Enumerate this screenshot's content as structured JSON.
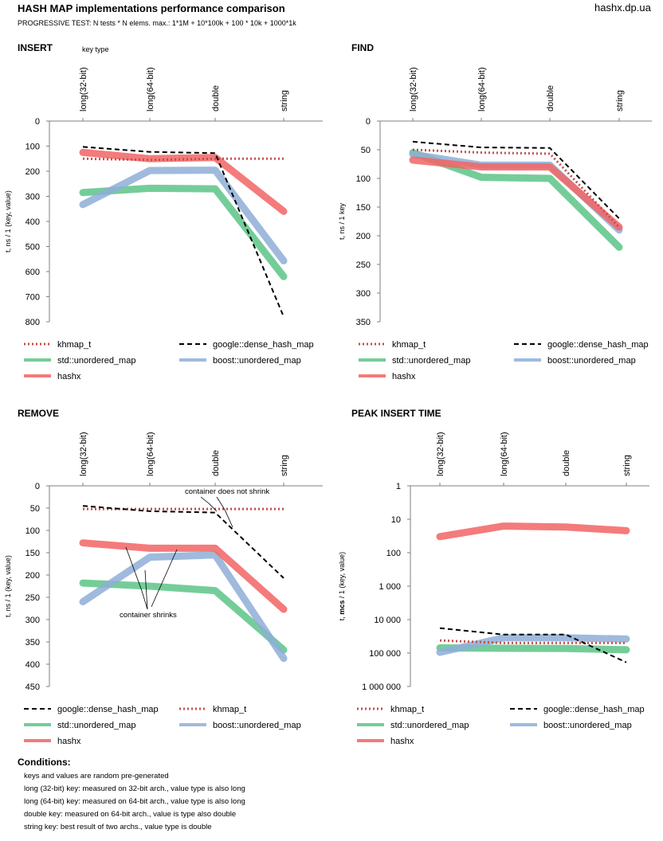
{
  "header": {
    "title": "HASH MAP implementations performance comparison",
    "subtitle": "PROGRESSIVE TEST: N tests * N elems. max.: 1*1M + 10*100k + 100 * 10k + 1000*1k",
    "site": "hashx.dp.ua"
  },
  "annotations": {
    "key_type": "key type",
    "no_shrink": "container does not shrink",
    "shrinks": "container shrinks"
  },
  "styles": {
    "khmap_t": {
      "color": "#c0504d",
      "width": 3,
      "dash": "2,3",
      "cap": "butt"
    },
    "google::dense_hash_map": {
      "color": "#000000",
      "width": 2,
      "dash": "6,4",
      "cap": "butt"
    },
    "std::unordered_map": {
      "color": "#5cc487",
      "width": 9,
      "dash": "",
      "cap": "round"
    },
    "boost::unordered_map": {
      "color": "#8eaed6",
      "width": 9,
      "dash": "",
      "cap": "round"
    },
    "hashx": {
      "color": "#f26464",
      "width": 9,
      "dash": "",
      "cap": "round"
    }
  },
  "chart_data": [
    {
      "type": "line",
      "title": "INSERT",
      "ylabel": "t, ns / 1 (key, value)",
      "categories": [
        "long(32-bit)",
        "long(64-bit)",
        "double",
        "string"
      ],
      "y_inverted": true,
      "ylim": [
        0,
        800
      ],
      "yticks": [
        0,
        100,
        200,
        300,
        400,
        500,
        600,
        700,
        800
      ],
      "ytick_labels": [
        "0",
        "100",
        "200",
        "300",
        "400",
        "500",
        "600",
        "700",
        "800"
      ],
      "legend": [
        "khmap_t",
        "google::dense_hash_map",
        "std::unordered_map",
        "boost::unordered_map",
        "hashx"
      ],
      "series": [
        {
          "name": "std::unordered_map",
          "values": [
            285,
            268,
            270,
            620
          ]
        },
        {
          "name": "boost::unordered_map",
          "values": [
            333,
            197,
            196,
            557
          ]
        },
        {
          "name": "hashx",
          "values": [
            125,
            150,
            145,
            360
          ]
        },
        {
          "name": "khmap_t",
          "values": [
            150,
            155,
            150,
            150
          ]
        },
        {
          "name": "google::dense_hash_map",
          "values": [
            103,
            123,
            128,
            780
          ]
        }
      ]
    },
    {
      "type": "line",
      "title": "FIND",
      "ylabel": "t, ns / 1 key",
      "categories": [
        "long(32-bit)",
        "long(64-bit)",
        "double",
        "string"
      ],
      "y_inverted": true,
      "ylim": [
        0,
        350
      ],
      "yticks": [
        0,
        50,
        100,
        150,
        200,
        250,
        300,
        350
      ],
      "ytick_labels": [
        "0",
        "50",
        "100",
        "150",
        "200",
        "250",
        "300",
        "350"
      ],
      "legend": [
        "khmap_t",
        "google::dense_hash_map",
        "std::unordered_map",
        "boost::unordered_map",
        "hashx"
      ],
      "series": [
        {
          "name": "std::unordered_map",
          "values": [
            55,
            98,
            100,
            220
          ]
        },
        {
          "name": "boost::unordered_map",
          "values": [
            58,
            77,
            77,
            190
          ]
        },
        {
          "name": "hashx",
          "values": [
            68,
            80,
            80,
            185
          ]
        },
        {
          "name": "khmap_t",
          "values": [
            50,
            55,
            57,
            185
          ]
        },
        {
          "name": "google::dense_hash_map",
          "values": [
            36,
            46,
            47,
            170
          ]
        }
      ]
    },
    {
      "type": "line",
      "title": "REMOVE",
      "ylabel": "t, ns / 1 (key, value)",
      "categories": [
        "long(32-bit)",
        "long(64-bit)",
        "double",
        "string"
      ],
      "y_inverted": true,
      "ylim": [
        0,
        450
      ],
      "yticks": [
        0,
        50,
        100,
        150,
        200,
        250,
        300,
        350,
        400,
        450
      ],
      "ytick_labels": [
        "0",
        "50",
        "100",
        "150",
        "200",
        "250",
        "300",
        "350",
        "400",
        "450"
      ],
      "legend": [
        "google::dense_hash_map",
        "khmap_t",
        "std::unordered_map",
        "boost::unordered_map",
        "hashx"
      ],
      "series": [
        {
          "name": "std::unordered_map",
          "values": [
            218,
            225,
            235,
            368
          ]
        },
        {
          "name": "boost::unordered_map",
          "values": [
            260,
            160,
            155,
            387
          ]
        },
        {
          "name": "hashx",
          "values": [
            128,
            140,
            140,
            277
          ]
        },
        {
          "name": "khmap_t",
          "values": [
            52,
            52,
            52,
            52
          ]
        },
        {
          "name": "google::dense_hash_map",
          "values": [
            45,
            57,
            60,
            207
          ]
        }
      ]
    },
    {
      "type": "line",
      "title": "PEAK INSERT TIME",
      "ylabel": "t, mcs / 1 (key, value)",
      "ylabel_bold_part": "mcs",
      "categories": [
        "long(32-bit)",
        "long(64-bit)",
        "double",
        "string"
      ],
      "y_inverted": true,
      "y_scale": "log",
      "ylim": [
        1,
        1000000
      ],
      "yticks": [
        1,
        10,
        100,
        1000,
        10000,
        100000,
        1000000
      ],
      "ytick_labels": [
        "1",
        "10",
        "100",
        "1 000",
        "10 000",
        "100 000",
        "1 000 000"
      ],
      "legend": [
        "khmap_t",
        "google::dense_hash_map",
        "std::unordered_map",
        "boost::unordered_map",
        "hashx"
      ],
      "series": [
        {
          "name": "std::unordered_map",
          "values": [
            70000,
            72000,
            73000,
            80000
          ]
        },
        {
          "name": "boost::unordered_map",
          "values": [
            95000,
            35000,
            35000,
            38000
          ]
        },
        {
          "name": "hashx",
          "values": [
            33,
            16,
            17,
            22
          ]
        },
        {
          "name": "khmap_t",
          "values": [
            42000,
            50000,
            50000,
            50000
          ]
        },
        {
          "name": "google::dense_hash_map",
          "values": [
            18000,
            28000,
            28000,
            190000
          ]
        }
      ]
    }
  ],
  "conditions": {
    "title": "Conditions:",
    "lines": [
      "keys and values are random pre-generated",
      "long (32-bit) key: measured on 32-bit arch., value type is also long",
      "long (64-bit) key: measured on 64-bit arch., value type is also long",
      "double key: measured on 64-bit arch., value is type also double",
      "string key: best result of two archs., value type is double"
    ]
  }
}
